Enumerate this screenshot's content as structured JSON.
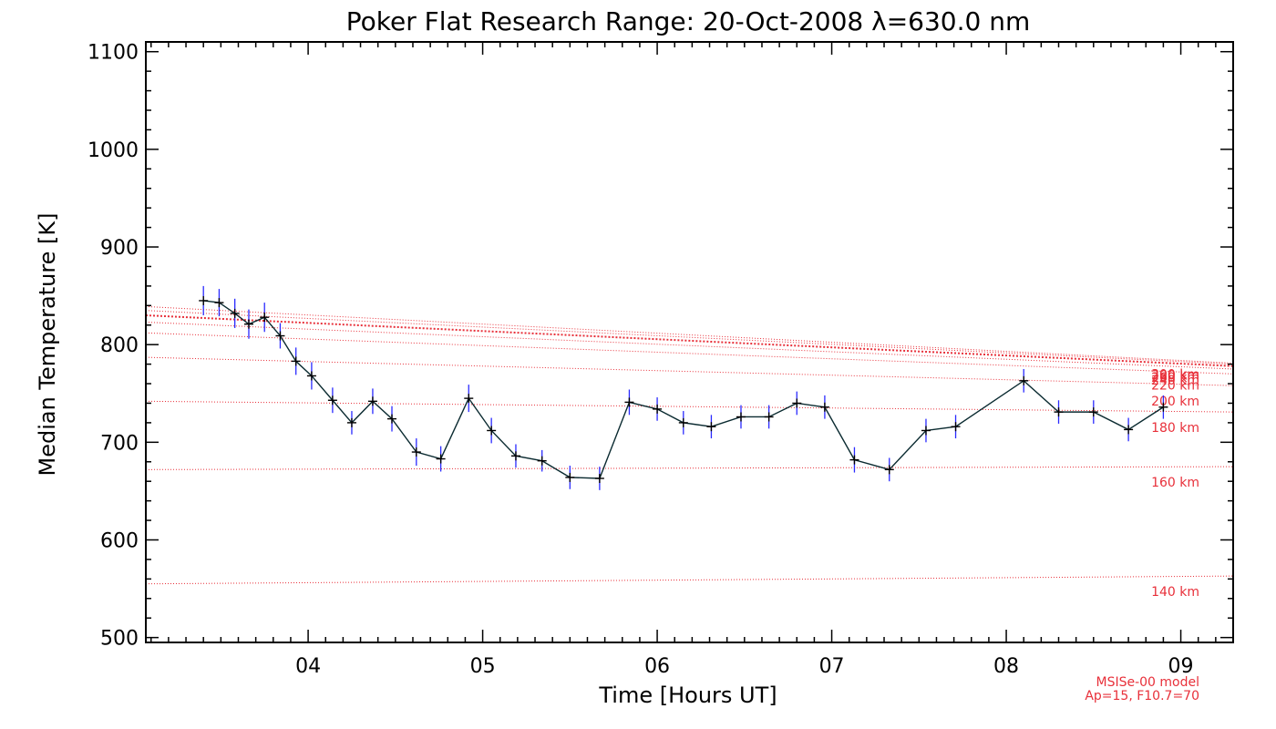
{
  "chart_data": {
    "type": "line",
    "title": "Poker Flat Research Range: 20-Oct-2008 λ=630.0 nm",
    "xlabel": "Time [Hours UT]",
    "ylabel": "Median Temperature [K]",
    "xlim": [
      3.07,
      9.3
    ],
    "ylim": [
      495,
      1110
    ],
    "x_ticks": [
      4,
      5,
      6,
      7,
      8,
      9
    ],
    "x_tick_labels": [
      "04",
      "05",
      "06",
      "07",
      "08",
      "09"
    ],
    "y_ticks": [
      500,
      600,
      700,
      800,
      900,
      1000,
      1100
    ],
    "y_tick_labels": [
      "500",
      "600",
      "700",
      "800",
      "900",
      "1000",
      "1100"
    ],
    "grid": false,
    "colors": {
      "measurement_line": "#0a2a30",
      "marker": "#000000",
      "error_bar": "#2a2aff",
      "model": "#e8303a"
    },
    "series": [
      {
        "x": [
          3.4,
          3.49,
          3.58,
          3.66,
          3.75,
          3.84,
          3.93,
          4.02,
          4.14,
          4.25,
          4.37,
          4.48,
          4.62,
          4.76,
          4.92,
          5.05,
          5.19,
          5.34,
          5.5,
          5.67,
          5.84,
          6.0,
          6.15,
          6.31,
          6.48,
          6.64,
          6.8,
          6.96,
          7.13,
          7.33,
          7.54,
          7.71,
          8.1,
          8.3,
          8.5,
          8.7,
          8.9
        ],
        "y": [
          845,
          843,
          832,
          821,
          828,
          809,
          783,
          768,
          743,
          720,
          742,
          724,
          690,
          683,
          745,
          712,
          686,
          681,
          664,
          663,
          741,
          734,
          720,
          716,
          726,
          726,
          740,
          736,
          682,
          672,
          712,
          716,
          763,
          731,
          731,
          713,
          736
        ],
        "error": [
          15,
          14,
          15,
          15,
          15,
          13,
          14,
          14,
          13,
          12,
          13,
          13,
          14,
          13,
          14,
          13,
          12,
          11,
          12,
          12,
          13,
          12,
          12,
          12,
          12,
          12,
          12,
          12,
          13,
          12,
          12,
          12,
          12,
          12,
          12,
          12,
          12
        ]
      }
    ],
    "model_curves": [
      {
        "label": "140 km",
        "x": [
          3.07,
          9.3
        ],
        "y": [
          555,
          563
        ]
      },
      {
        "label": "160 km",
        "x": [
          3.07,
          9.3
        ],
        "y": [
          672,
          675
        ]
      },
      {
        "label": "180 km",
        "x": [
          3.07,
          9.3
        ],
        "y": [
          742,
          731
        ]
      },
      {
        "label": "200 km",
        "x": [
          3.07,
          9.3
        ],
        "y": [
          787,
          758
        ]
      },
      {
        "label": "220 km",
        "x": [
          3.07,
          9.3
        ],
        "y": [
          812,
          770
        ]
      },
      {
        "label": "240 km",
        "x": [
          3.07,
          9.3
        ],
        "y": [
          823,
          775
        ]
      },
      {
        "label": "260 km",
        "x": [
          3.07,
          9.3
        ],
        "y": [
          830,
          778
        ]
      },
      {
        "label": "280 km",
        "x": [
          3.07,
          9.3
        ],
        "y": [
          835,
          780
        ]
      },
      {
        "label": "300 km",
        "x": [
          3.07,
          9.3
        ],
        "y": [
          839,
          781
        ]
      }
    ],
    "annotations": [
      "MSISe-00 model",
      "Ap=15, F10.7=70"
    ]
  }
}
